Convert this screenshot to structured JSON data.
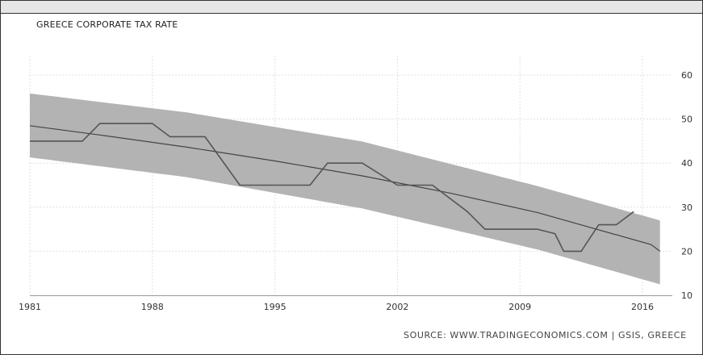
{
  "chart_data": {
    "type": "line",
    "title": "GREECE CORPORATE TAX RATE",
    "source": "SOURCE: WWW.TRADINGECONOMICS.COM | GSIS, GREECE",
    "xlim": [
      1981,
      2017
    ],
    "ylim": [
      10,
      60
    ],
    "x_ticks": [
      1981,
      1988,
      1995,
      2002,
      2009,
      2016
    ],
    "y_ticks": [
      10,
      20,
      30,
      40,
      50,
      60
    ],
    "grid": true,
    "y_axis_position": "right",
    "series": [
      {
        "values_xy": [
          [
            1981,
            45
          ],
          [
            1984,
            45
          ],
          [
            1985,
            49
          ],
          [
            1988,
            49
          ],
          [
            1989,
            46
          ],
          [
            1991,
            46
          ],
          [
            1993,
            35
          ],
          [
            1997,
            35
          ],
          [
            1998,
            40
          ],
          [
            2000,
            40
          ],
          [
            2002,
            35
          ],
          [
            2004,
            35
          ],
          [
            2006,
            29
          ],
          [
            2007,
            25
          ],
          [
            2010,
            25
          ],
          [
            2011,
            24
          ],
          [
            2011.5,
            20
          ],
          [
            2012.5,
            20
          ],
          [
            2013.5,
            26
          ],
          [
            2014.5,
            26
          ],
          [
            2015.5,
            29
          ]
        ]
      },
      {
        "values_xy": [
          [
            1981,
            48.5
          ],
          [
            1985,
            46.4
          ],
          [
            1990,
            43.6
          ],
          [
            1995,
            40.5
          ],
          [
            2000,
            37.1
          ],
          [
            2005,
            33.2
          ],
          [
            2010,
            28.8
          ],
          [
            2016.5,
            21.5
          ],
          [
            2017,
            20.0
          ]
        ]
      }
    ],
    "band": {
      "upper": [
        [
          1981,
          55.8
        ],
        [
          1990,
          51.5
        ],
        [
          2000,
          44.9
        ],
        [
          2010,
          34.8
        ],
        [
          2017,
          27.0
        ]
      ],
      "lower": [
        [
          1981,
          41.3
        ],
        [
          1990,
          36.8
        ],
        [
          2000,
          29.7
        ],
        [
          2010,
          20.4
        ],
        [
          2017,
          12.5
        ]
      ]
    },
    "colors": {
      "band": "#b3b3b3",
      "line": "#555555",
      "trend": "#444444",
      "grid": "#e0e0e0"
    }
  }
}
